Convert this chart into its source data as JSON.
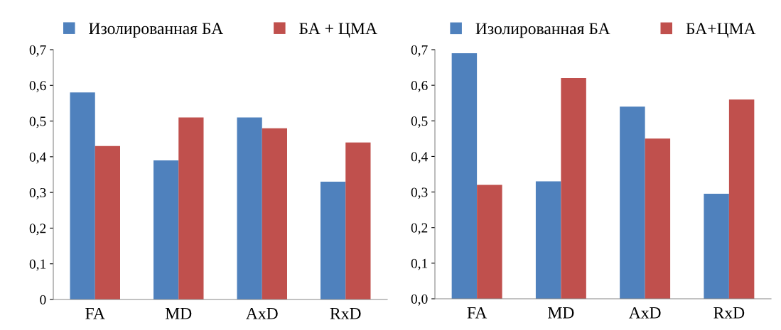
{
  "chart_data": [
    {
      "type": "bar",
      "categories": [
        "FA",
        "MD",
        "AxD",
        "RxD"
      ],
      "legend": "top",
      "grid": false,
      "ylim": [
        0,
        0.7
      ],
      "yticks": [
        {
          "value": 0,
          "label": "0"
        },
        {
          "value": 0.1,
          "label": "0,1"
        },
        {
          "value": 0.2,
          "label": "0,2"
        },
        {
          "value": 0.3,
          "label": "0,3"
        },
        {
          "value": 0.4,
          "label": "0,4"
        },
        {
          "value": 0.5,
          "label": "0,5"
        },
        {
          "value": 0.6,
          "label": "0,6"
        },
        {
          "value": 0.7,
          "label": "0,7"
        }
      ],
      "series": [
        {
          "name": "Изолированная БА",
          "color": "#4f81bd",
          "values": [
            0.58,
            0.39,
            0.51,
            0.33
          ]
        },
        {
          "name": "БА + ЦМА",
          "color": "#c0504d",
          "values": [
            0.43,
            0.51,
            0.48,
            0.44
          ]
        }
      ]
    },
    {
      "type": "bar",
      "categories": [
        "FA",
        "MD",
        "AxD",
        "RxD"
      ],
      "legend": "top",
      "grid": false,
      "ylim": [
        0,
        0.7
      ],
      "yticks": [
        {
          "value": 0,
          "label": "0,0"
        },
        {
          "value": 0.1,
          "label": "0,1"
        },
        {
          "value": 0.2,
          "label": "0,2"
        },
        {
          "value": 0.3,
          "label": "0,3"
        },
        {
          "value": 0.4,
          "label": "0,4"
        },
        {
          "value": 0.5,
          "label": "0,5"
        },
        {
          "value": 0.6,
          "label": "0,6"
        },
        {
          "value": 0.7,
          "label": "0,7"
        }
      ],
      "series": [
        {
          "name": "Изолированная БА",
          "color": "#4f81bd",
          "values": [
            0.69,
            0.33,
            0.54,
            0.295
          ]
        },
        {
          "name": "БА+ЦМА",
          "color": "#c0504d",
          "values": [
            0.32,
            0.62,
            0.45,
            0.56
          ]
        }
      ]
    }
  ]
}
